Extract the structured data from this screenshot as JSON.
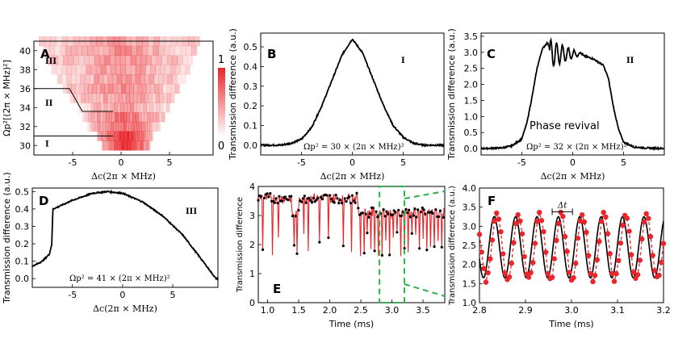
{
  "colors": {
    "heat_max": "#e8262b",
    "trace": "#000000",
    "dots": "#e8262b",
    "dashed_box": "#2db34a"
  },
  "chart_data": [
    {
      "panel": "A",
      "type": "heatmap",
      "xlabel": "Δc(2π × MHz)",
      "ylabel": "Ωp²[(2π × MHz)²]",
      "xlim": [
        -9,
        9.5
      ],
      "ylim": [
        29,
        41
      ],
      "xticks": [
        "-5",
        "0",
        "5"
      ],
      "yticks": [
        "30",
        "32",
        "34",
        "36",
        "38",
        "40"
      ],
      "colorbar": {
        "max_label": "1",
        "min_label": "0"
      },
      "region_labels": [
        "III",
        "II",
        "I"
      ],
      "boundaries": [
        {
          "rows": [
            36,
            33.6,
            33.4
          ],
          "desc": "II/III"
        },
        {
          "rows": [
            31
          ],
          "desc": "I/II"
        }
      ],
      "rows": [
        30,
        31,
        32,
        33,
        34,
        35,
        36,
        37,
        38,
        39,
        40,
        41
      ],
      "row_extent": [
        [
          -2.0,
          3.0
        ],
        [
          -2.5,
          3.3
        ],
        [
          -3.5,
          4.0
        ],
        [
          -4.0,
          4.5
        ],
        [
          -4.5,
          5.0
        ],
        [
          -5.3,
          5.5
        ],
        [
          -6.0,
          6.0
        ],
        [
          -6.6,
          6.7
        ],
        [
          -7.2,
          7.1
        ],
        [
          -7.6,
          7.4
        ],
        [
          -8.0,
          7.8
        ],
        [
          -8.5,
          8.1
        ]
      ]
    },
    {
      "panel": "B",
      "type": "line",
      "region_label": "I",
      "annotation": "Ωp² = 30 × (2π × MHz)²",
      "xlabel": "Δc(2π × MHz)",
      "ylabel": "Transmission difference (a.u.)",
      "xlim": [
        -9,
        9
      ],
      "ylim": [
        -0.05,
        0.57
      ],
      "xticks": [
        "-5",
        "0",
        "5"
      ],
      "yticks": [
        "0.0",
        "0.1",
        "0.2",
        "0.3",
        "0.4",
        "0.5"
      ],
      "x": [
        -9,
        -7,
        -6,
        -5,
        -4,
        -3,
        -2,
        -1,
        0,
        1,
        2,
        3,
        4,
        5,
        6,
        7,
        9
      ],
      "y": [
        0.0,
        0.0,
        0.01,
        0.03,
        0.09,
        0.2,
        0.33,
        0.46,
        0.54,
        0.47,
        0.34,
        0.21,
        0.1,
        0.04,
        0.01,
        0.0,
        0.0
      ]
    },
    {
      "panel": "C",
      "type": "line",
      "region_label": "II",
      "annotation": "Phase revival",
      "annotation2": "Ωp² = 32 × (2π × MHz)²",
      "xlabel": "Δc(2π × MHz)",
      "ylabel": "Transmission difference (a.u.)",
      "xlim": [
        -9,
        9
      ],
      "ylim": [
        -0.2,
        3.6
      ],
      "xticks": [
        "-5",
        "0",
        "5"
      ],
      "yticks": [
        "0.0",
        "0.5",
        "1.0",
        "1.5",
        "2.0",
        "2.5",
        "3.0",
        "3.5"
      ],
      "x": [
        -9,
        -7,
        -6,
        -5,
        -4.5,
        -4,
        -3.5,
        -3,
        -2.5,
        -2,
        -1,
        0,
        1,
        2,
        3,
        3.5,
        4,
        4.5,
        5,
        6,
        7,
        9
      ],
      "y": [
        0.0,
        0.02,
        0.08,
        0.3,
        0.8,
        1.6,
        2.5,
        3.1,
        3.3,
        3.0,
        3.0,
        2.95,
        2.9,
        2.8,
        2.6,
        2.2,
        1.3,
        0.6,
        0.2,
        0.05,
        0.02,
        0.0
      ],
      "revival": {
        "x_start": -2.3,
        "x_end": 1.0,
        "center": 2.95,
        "amplitude": 0.45
      }
    },
    {
      "panel": "D",
      "type": "line",
      "region_label": "III",
      "annotation": "Ωp² = 41 × (2π × MHz)²",
      "xlabel": "Δc(2π × MHz)",
      "ylabel": "Transmission difference (a.u.)",
      "xlim": [
        -9,
        9.5
      ],
      "ylim": [
        -0.05,
        0.52
      ],
      "xticks": [
        "-5",
        "0",
        "5"
      ],
      "yticks": [
        "0.0",
        "0.1",
        "0.2",
        "0.3",
        "0.4",
        "0.5"
      ],
      "x": [
        -9,
        -8,
        -7.3,
        -7.05,
        -6.95,
        -6.5,
        -5,
        -3,
        -1.5,
        0,
        2,
        4,
        6,
        8,
        9.3
      ],
      "y": [
        0.07,
        0.1,
        0.14,
        0.2,
        0.4,
        0.41,
        0.45,
        0.49,
        0.5,
        0.49,
        0.44,
        0.36,
        0.25,
        0.1,
        0.0
      ]
    },
    {
      "panel": "E",
      "type": "scatter",
      "xlabel": "Time (ms)",
      "ylabel": "Transmission difference",
      "xlim": [
        0.85,
        3.85
      ],
      "ylim": [
        0,
        4
      ],
      "xticks": [
        "1.0",
        "1.5",
        "2.0",
        "2.5",
        "3.0",
        "3.5"
      ],
      "yticks": [
        "0",
        "1",
        "2",
        "3",
        "4"
      ],
      "segments": [
        {
          "t0": 0.85,
          "t1": 1.38,
          "level": 3.6
        },
        {
          "t0": 1.38,
          "t1": 1.5,
          "level": 3.05
        },
        {
          "t0": 1.5,
          "t1": 2.45,
          "level": 3.6
        },
        {
          "t0": 2.45,
          "t1": 3.85,
          "level": 3.1
        }
      ],
      "dips": [
        0.92,
        1.08,
        1.17,
        1.43,
        1.47,
        1.58,
        1.66,
        1.83,
        1.98,
        2.22,
        2.35,
        2.5,
        2.55,
        2.6,
        2.66,
        2.72,
        2.78,
        2.84,
        2.9,
        2.96,
        3.02,
        3.08,
        3.14,
        3.2,
        3.26,
        3.32,
        3.38,
        3.44,
        3.5,
        3.56,
        3.62,
        3.68,
        3.74,
        3.8
      ],
      "zoom_box": [
        2.8,
        3.2
      ]
    },
    {
      "panel": "F",
      "type": "scatter",
      "xlabel": "Time (ms)",
      "ylabel": "Transmission difference (a.u.)",
      "annotation": "Δt",
      "xlim": [
        2.8,
        3.2
      ],
      "ylim": [
        1.0,
        4.0
      ],
      "xticks": [
        "2.8",
        "2.9",
        "3.0",
        "3.1",
        "3.2"
      ],
      "yticks": [
        "1.0",
        "1.5",
        "2.0",
        "2.5",
        "3.0",
        "3.5",
        "4.0"
      ],
      "fit": {
        "offset": 2.45,
        "amplitude": 0.8,
        "period": 0.0465,
        "phase_t": 2.832
      },
      "measured": {
        "offset": 2.45,
        "amplitude": 0.85,
        "period": 0.0465,
        "phase_t": 2.838
      },
      "delta_t": [
        2.958,
        3.002
      ]
    }
  ],
  "panel_labels": [
    "A",
    "B",
    "C",
    "D",
    "E",
    "F"
  ]
}
